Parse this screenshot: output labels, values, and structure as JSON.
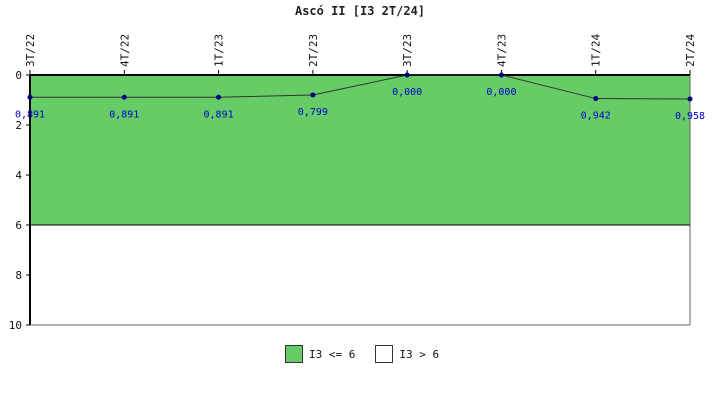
{
  "chart_data": {
    "type": "line",
    "title": "Ascó II [I3 2T/24]",
    "categories": [
      "3T/22",
      "4T/22",
      "1T/23",
      "2T/23",
      "3T/23",
      "4T/23",
      "1T/24",
      "2T/24"
    ],
    "values": [
      0.891,
      0.891,
      0.891,
      0.799,
      0.0,
      0.0,
      0.942,
      0.958
    ],
    "value_labels": [
      "0,891",
      "0,891",
      "0,891",
      "0,799",
      "0,000",
      "0,000",
      "0,942",
      "0,958"
    ],
    "y_ticks": [
      "0",
      "2",
      "4",
      "6",
      "8",
      "10"
    ],
    "ylim": [
      0,
      10
    ],
    "y_inverted": true,
    "threshold": 6,
    "line_color": "#000080",
    "bands": [
      {
        "label": "I3 <= 6",
        "from": 0,
        "to": 6,
        "color": "#66cc66"
      },
      {
        "label": "I3 > 6",
        "from": 6,
        "to": 10,
        "color": "#ffffff"
      }
    ],
    "legend_position": "bottom-center",
    "grid": false
  }
}
